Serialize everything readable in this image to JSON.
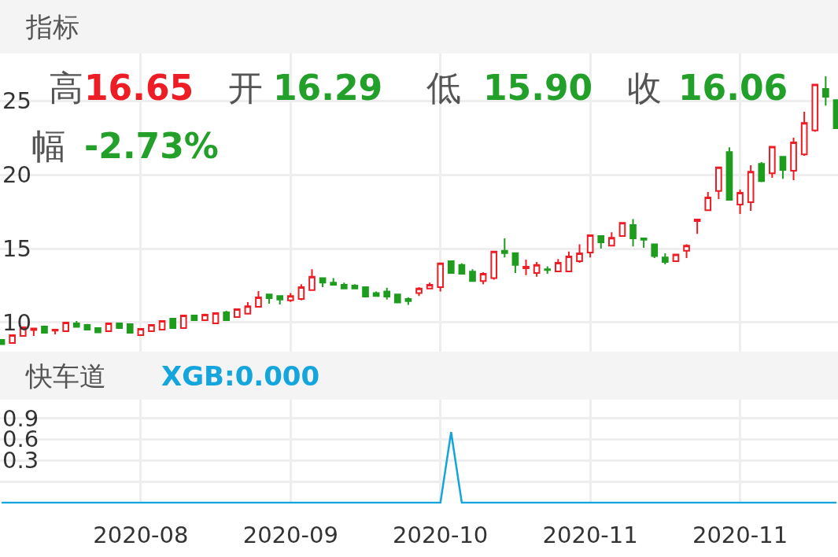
{
  "chart_data": [
    {
      "type": "candlestick",
      "title": "指标",
      "annotations": [
        "高",
        "16.65",
        "开",
        "16.29",
        "低",
        "15.90",
        "收",
        "16.06",
        "幅",
        "-2.73%"
      ],
      "categories": [
        null,
        null,
        null,
        null,
        null,
        null,
        null,
        null,
        null,
        null,
        null,
        null,
        null,
        "2020-08",
        null,
        null,
        null,
        null,
        null,
        null,
        null,
        null,
        null,
        null,
        null,
        null,
        null,
        "2020-09",
        null,
        null,
        null,
        null,
        null,
        null,
        null,
        null,
        null,
        null,
        null,
        null,
        null,
        "2020-10",
        null,
        null,
        null,
        null,
        null,
        null,
        null,
        null,
        null,
        null,
        null,
        null,
        null,
        "2020-11",
        null,
        null,
        null,
        null,
        null,
        null,
        null,
        null,
        null,
        null,
        null,
        null,
        null,
        "2020-11",
        null,
        null,
        null,
        null,
        null,
        null,
        null,
        null,
        null
      ],
      "ohlc": [
        [
          8.83,
          8.85,
          8.5,
          8.53
        ],
        [
          8.62,
          9.2,
          8.6,
          9.15
        ],
        [
          9.1,
          9.7,
          9.1,
          9.68
        ],
        [
          9.5,
          9.65,
          9.1,
          9.6
        ],
        [
          9.73,
          9.73,
          9.31,
          9.31
        ],
        [
          9.45,
          9.52,
          9.2,
          9.52
        ],
        [
          9.41,
          10.0,
          9.41,
          10.0
        ],
        [
          9.95,
          10.1,
          9.7,
          9.7
        ],
        [
          9.84,
          9.9,
          9.52,
          9.52
        ],
        [
          9.63,
          9.63,
          9.33,
          9.33
        ],
        [
          9.41,
          9.95,
          9.41,
          9.95
        ],
        [
          9.95,
          9.95,
          9.63,
          9.63
        ],
        [
          9.89,
          9.89,
          9.31,
          9.31
        ],
        [
          9.15,
          9.6,
          9.15,
          9.57
        ],
        [
          9.41,
          9.84,
          9.41,
          9.84
        ],
        [
          9.52,
          10.1,
          9.52,
          10.1
        ],
        [
          10.27,
          10.27,
          9.63,
          9.63
        ],
        [
          9.63,
          10.48,
          9.63,
          10.48
        ],
        [
          10.48,
          10.48,
          10.16,
          10.16
        ],
        [
          10.16,
          10.6,
          10.16,
          10.53
        ],
        [
          9.95,
          10.64,
          9.95,
          10.64
        ],
        [
          10.69,
          10.8,
          10.16,
          10.16
        ],
        [
          10.37,
          10.9,
          10.37,
          10.9
        ],
        [
          10.6,
          11.38,
          10.6,
          11.1
        ],
        [
          11.06,
          12.13,
          11.06,
          11.7
        ],
        [
          11.9,
          11.9,
          11.28,
          11.65
        ],
        [
          11.8,
          11.8,
          11.22,
          11.55
        ],
        [
          11.5,
          12.0,
          11.4,
          11.8
        ],
        [
          11.6,
          12.6,
          11.5,
          12.4
        ],
        [
          12.2,
          13.6,
          12.2,
          13.1
        ],
        [
          13.0,
          13.0,
          12.4,
          12.7
        ],
        [
          12.7,
          13.0,
          12.55,
          12.55
        ],
        [
          12.55,
          12.7,
          12.25,
          12.3
        ],
        [
          12.5,
          12.6,
          12.3,
          12.3
        ],
        [
          12.4,
          12.4,
          11.75,
          11.75
        ],
        [
          12.0,
          12.1,
          11.75,
          11.8
        ],
        [
          12.1,
          12.35,
          11.55,
          11.75
        ],
        [
          11.9,
          11.9,
          11.3,
          11.35
        ],
        [
          11.6,
          11.7,
          11.2,
          11.45
        ],
        [
          12.0,
          12.4,
          11.8,
          12.3
        ],
        [
          12.3,
          12.7,
          12.3,
          12.55
        ],
        [
          12.4,
          14.0,
          12.1,
          14.0
        ],
        [
          14.15,
          14.2,
          13.35,
          13.35
        ],
        [
          13.9,
          14.0,
          13.3,
          13.3
        ],
        [
          13.45,
          13.6,
          12.75,
          12.8
        ],
        [
          12.8,
          13.4,
          12.6,
          13.3
        ],
        [
          13.0,
          14.8,
          12.9,
          14.8
        ],
        [
          14.85,
          15.7,
          14.4,
          14.7
        ],
        [
          14.7,
          14.7,
          13.35,
          13.9
        ],
        [
          13.67,
          14.26,
          13.2,
          13.78
        ],
        [
          13.35,
          14.1,
          13.1,
          13.9
        ],
        [
          13.6,
          13.8,
          13.3,
          13.55
        ],
        [
          13.46,
          14.3,
          13.46,
          14.04
        ],
        [
          13.46,
          14.8,
          13.46,
          14.47
        ],
        [
          14.15,
          15.3,
          14.04,
          14.68
        ],
        [
          14.73,
          15.96,
          14.4,
          15.9
        ],
        [
          15.85,
          15.85,
          15.0,
          15.43
        ],
        [
          15.2,
          16.1,
          15.2,
          15.74
        ],
        [
          15.85,
          16.8,
          15.8,
          16.75
        ],
        [
          16.6,
          17.0,
          15.15,
          15.7
        ],
        [
          15.7,
          15.75,
          15.05,
          15.6
        ],
        [
          15.3,
          15.3,
          14.36,
          14.5
        ],
        [
          14.4,
          14.68,
          13.94,
          14.1
        ],
        [
          14.15,
          14.6,
          14.15,
          14.6
        ],
        [
          14.85,
          15.3,
          14.36,
          15.2
        ],
        [
          16.86,
          16.97,
          16.0,
          16.97
        ],
        [
          17.6,
          18.83,
          17.55,
          18.46
        ],
        [
          18.9,
          20.5,
          18.35,
          20.5
        ],
        [
          21.54,
          21.86,
          18.25,
          18.3
        ],
        [
          17.98,
          18.99,
          17.34,
          18.78
        ],
        [
          18.14,
          20.64,
          17.55,
          20.2
        ],
        [
          20.74,
          20.85,
          19.5,
          19.57
        ],
        [
          20.1,
          21.9,
          19.79,
          21.9
        ],
        [
          21.22,
          21.22,
          19.73,
          20.32
        ],
        [
          20.27,
          22.5,
          19.63,
          22.18
        ],
        [
          21.38,
          24.26,
          21.28,
          23.5
        ],
        [
          23.0,
          26.1,
          22.9,
          26.1
        ],
        [
          25.8,
          26.65,
          24.68,
          25.27
        ],
        [
          25.05,
          25.05,
          23.14,
          23.14
        ]
      ],
      "colors": [
        "#1e9c1e",
        "#ee1c24",
        "#ee1c24",
        "#ee1c24",
        "#1e9c1e",
        "#ee1c24",
        "#ee1c24",
        "#1e9c1e",
        "#1e9c1e",
        "#1e9c1e",
        "#ee1c24",
        "#1e9c1e",
        "#1e9c1e",
        "#ee1c24",
        "#ee1c24",
        "#ee1c24",
        "#1e9c1e",
        "#ee1c24",
        "#1e9c1e",
        "#ee1c24",
        "#ee1c24",
        "#1e9c1e",
        "#ee1c24",
        "#ee1c24",
        "#ee1c24",
        "#1e9c1e",
        "#1e9c1e",
        "#ee1c24",
        "#ee1c24",
        "#ee1c24",
        "#1e9c1e",
        "#1e9c1e",
        "#1e9c1e",
        "#1e9c1e",
        "#1e9c1e",
        "#1e9c1e",
        "#1e9c1e",
        "#1e9c1e",
        "#1e9c1e",
        "#ee1c24",
        "#ee1c24",
        "#ee1c24",
        "#1e9c1e",
        "#1e9c1e",
        "#1e9c1e",
        "#ee1c24",
        "#ee1c24",
        "#1e9c1e",
        "#1e9c1e",
        "#ee1c24",
        "#ee1c24",
        "#1e9c1e",
        "#ee1c24",
        "#ee1c24",
        "#ee1c24",
        "#ee1c24",
        "#1e9c1e",
        "#ee1c24",
        "#ee1c24",
        "#1e9c1e",
        "#1e9c1e",
        "#1e9c1e",
        "#1e9c1e",
        "#ee1c24",
        "#ee1c24",
        "#ee1c24",
        "#ee1c24",
        "#ee1c24",
        "#1e9c1e",
        "#ee1c24",
        "#ee1c24",
        "#1e9c1e",
        "#ee1c24",
        "#1e9c1e",
        "#ee1c24",
        "#ee1c24",
        "#ee1c24",
        "#1e9c1e",
        "#1e9c1e"
      ],
      "ylim": [
        8.03,
        28.2
      ],
      "yticks": [
        10,
        15,
        20,
        25
      ],
      "grid": true,
      "tick_labels": "y"
    },
    {
      "type": "line",
      "title": "快车道",
      "categories": [
        null,
        null,
        null,
        null,
        null,
        null,
        null,
        null,
        null,
        null,
        null,
        null,
        null,
        "2020-08",
        null,
        null,
        null,
        null,
        null,
        null,
        null,
        null,
        null,
        null,
        null,
        null,
        null,
        "2020-09",
        null,
        null,
        null,
        null,
        null,
        null,
        null,
        null,
        null,
        null,
        null,
        null,
        null,
        "2020-10",
        null,
        null,
        null,
        null,
        null,
        null,
        null,
        null,
        null,
        null,
        null,
        null,
        null,
        "2020-11",
        null,
        null,
        null,
        null,
        null,
        null,
        null,
        null,
        null,
        null,
        null,
        null,
        null,
        "2020-11",
        null,
        null,
        null,
        null,
        null,
        null,
        null,
        null,
        null
      ],
      "series": [
        {
          "name": "XGB:0.000",
          "color": "#14a5dc",
          "values": [
            -0.3,
            -0.3,
            -0.3,
            -0.3,
            -0.3,
            -0.3,
            -0.3,
            -0.3,
            -0.3,
            -0.3,
            -0.3,
            -0.3,
            -0.3,
            -0.3,
            -0.3,
            -0.3,
            -0.3,
            -0.3,
            -0.3,
            -0.3,
            -0.3,
            -0.3,
            -0.3,
            -0.3,
            -0.3,
            -0.3,
            -0.3,
            -0.3,
            -0.3,
            -0.3,
            -0.3,
            -0.3,
            -0.3,
            -0.3,
            -0.3,
            -0.3,
            -0.3,
            -0.3,
            -0.3,
            -0.3,
            -0.3,
            -0.3,
            0.7,
            -0.3,
            -0.3,
            -0.3,
            -0.3,
            -0.3,
            -0.3,
            -0.3,
            -0.3,
            -0.3,
            -0.3,
            -0.3,
            -0.3,
            -0.3,
            -0.3,
            -0.3,
            -0.3,
            -0.3,
            -0.3,
            -0.3,
            -0.3,
            -0.3,
            -0.3,
            -0.3,
            -0.3,
            -0.3,
            -0.3,
            -0.3,
            -0.3,
            -0.3,
            -0.3,
            -0.3,
            -0.3,
            -0.3,
            -0.3,
            -0.3,
            -0.3
          ]
        }
      ],
      "ylim": [
        -0.31,
        1.16
      ],
      "yticks": [
        {
          "value": 0,
          "label": null
        },
        0.3,
        0.6,
        0.9
      ],
      "grid": true,
      "marker": "none"
    }
  ]
}
